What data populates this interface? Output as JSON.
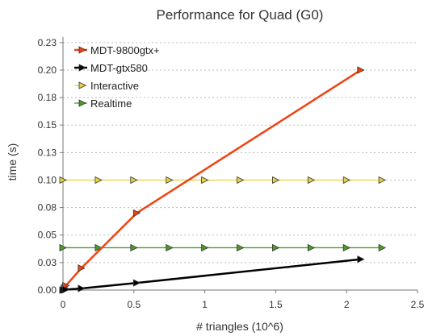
{
  "chart_data": {
    "type": "line",
    "title": "Performance for Quad (G0)",
    "xlabel": "# triangles (10^6)",
    "ylabel": "time (s)",
    "xlim": [
      0,
      2.5
    ],
    "ylim": [
      0,
      0.23
    ],
    "x_ticks": [
      "0",
      "0.5",
      "1",
      "1.5",
      "2",
      "2.5"
    ],
    "x_tick_values": [
      0,
      0.5,
      1,
      1.5,
      2,
      2.5
    ],
    "y_ticks": [
      "0.00",
      "0.03",
      "0.05",
      "0.08",
      "0.10",
      "0.13",
      "0.15",
      "0.18",
      "0.20",
      "0.23"
    ],
    "y_tick_values": [
      0,
      0.025,
      0.05,
      0.075,
      0.1,
      0.125,
      0.15,
      0.175,
      0.2,
      0.225
    ],
    "grid": "horizontal dotted",
    "legend_position": "top-left",
    "series": [
      {
        "name": "MDT-9800gtx+",
        "color": "#ee4411",
        "points": [
          [
            0.0,
            0.0
          ],
          [
            0.01,
            0.002
          ],
          [
            0.02,
            0.004
          ],
          [
            0.13,
            0.02
          ],
          [
            0.52,
            0.07
          ],
          [
            2.1,
            0.2
          ]
        ]
      },
      {
        "name": "MDT-gtx580",
        "color": "#000000",
        "points": [
          [
            0.0,
            0.0
          ],
          [
            0.01,
            0.0
          ],
          [
            0.02,
            0.0005
          ],
          [
            0.13,
            0.0015
          ],
          [
            0.52,
            0.0065
          ],
          [
            2.1,
            0.028
          ]
        ]
      },
      {
        "name": "Interactive",
        "color": "#e8d040",
        "points": [
          [
            0.0,
            0.1
          ],
          [
            0.25,
            0.1
          ],
          [
            0.5,
            0.1
          ],
          [
            0.75,
            0.1
          ],
          [
            1.0,
            0.1
          ],
          [
            1.25,
            0.1
          ],
          [
            1.5,
            0.1
          ],
          [
            1.75,
            0.1
          ],
          [
            2.0,
            0.1
          ],
          [
            2.25,
            0.1
          ]
        ]
      },
      {
        "name": "Realtime",
        "color": "#4c9a28",
        "points": [
          [
            0.0,
            0.0385
          ],
          [
            0.25,
            0.0385
          ],
          [
            0.5,
            0.0385
          ],
          [
            0.75,
            0.0385
          ],
          [
            1.0,
            0.0385
          ],
          [
            1.25,
            0.0385
          ],
          [
            1.5,
            0.0385
          ],
          [
            1.75,
            0.0385
          ],
          [
            2.0,
            0.0385
          ],
          [
            2.25,
            0.0385
          ]
        ]
      }
    ]
  }
}
